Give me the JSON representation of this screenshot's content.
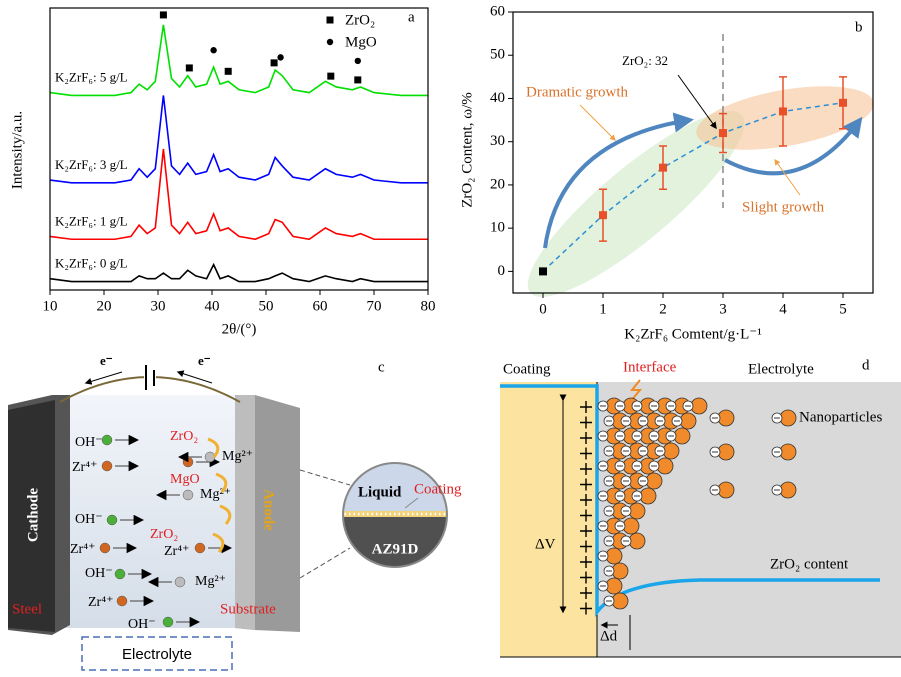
{
  "chart_data": [
    {
      "type": "line",
      "panel_label": "a",
      "xlabel": "2θ/(°)",
      "ylabel": "Intensity/a.u.",
      "x": [
        10,
        14,
        18,
        22,
        25,
        26.5,
        28,
        29.5,
        31,
        32.5,
        34,
        35.5,
        37,
        39,
        40.3,
        41.5,
        43,
        45,
        48,
        50.5,
        51.7,
        53,
        55,
        58,
        61,
        63,
        66,
        67.5,
        70,
        75,
        80
      ],
      "xlim": [
        10,
        80
      ],
      "xticks": [
        10,
        20,
        30,
        40,
        50,
        60,
        70,
        80
      ],
      "ylim": [
        0,
        100
      ],
      "series": [
        {
          "name": "K₂ZrF₆: 5 g/L",
          "color": "#00e000",
          "values": [
            70,
            69,
            69,
            69,
            70,
            73,
            71,
            74,
            94,
            75,
            72,
            76,
            72,
            73,
            79,
            73,
            74,
            71,
            70,
            72,
            78,
            76,
            71,
            70,
            74,
            72,
            71,
            72,
            70,
            69,
            69
          ]
        },
        {
          "name": "K₂ZrF₆: 3 g/L",
          "color": "#0000ff",
          "values": [
            39,
            38,
            38,
            38,
            39,
            43,
            40,
            43,
            69,
            44,
            41,
            45,
            41,
            42,
            48,
            42,
            43,
            40,
            39,
            41,
            47,
            44,
            40,
            39,
            43,
            41,
            40,
            41,
            39,
            38,
            38
          ]
        },
        {
          "name": "K₂ZrF₆: 1 g/L",
          "color": "#ff0000",
          "values": [
            19,
            18,
            18,
            18,
            19,
            23,
            20,
            22,
            50,
            23,
            20,
            24,
            20,
            21,
            27,
            21,
            22,
            19,
            18,
            20,
            25,
            24,
            19,
            18,
            22,
            20,
            19,
            20,
            18,
            18,
            18
          ]
        },
        {
          "name": "K₂ZrF₆: 0 g/L",
          "color": "#000000",
          "values": [
            4,
            3,
            3,
            3,
            3,
            5,
            4,
            4,
            6,
            4,
            4,
            7,
            5,
            4,
            9,
            4,
            5,
            3,
            3,
            4,
            5,
            6,
            4,
            3,
            5,
            4,
            3,
            4,
            3,
            3,
            3
          ]
        }
      ],
      "markers": [
        {
          "name": "ZrO₂",
          "shape": "square",
          "x": [
            31,
            35.8,
            43,
            51.5,
            62,
            67
          ]
        },
        {
          "name": "MgO",
          "shape": "circle",
          "x": [
            40.3,
            52.7,
            67
          ]
        }
      ]
    },
    {
      "type": "scatter",
      "panel_label": "b",
      "xlabel": "K₂ZrF₆ Comtent/g·L⁻¹",
      "ylabel": "ZrO₂ Content, ω/%",
      "x": [
        0,
        1,
        2,
        3,
        4,
        5
      ],
      "values": [
        0,
        13,
        24,
        32,
        37,
        39
      ],
      "errors": [
        0,
        6,
        5,
        4.5,
        8,
        6
      ],
      "colors": [
        "#000000",
        "#e8502a",
        "#e8502a",
        "#e8502a",
        "#e8502a",
        "#e8502a"
      ],
      "fit_color": "#2a8fd6",
      "xlim": [
        -0.5,
        5.5
      ],
      "xticks": [
        0,
        1,
        2,
        3,
        4,
        5
      ],
      "ylim": [
        -5,
        60
      ],
      "yticks": [
        0,
        10,
        20,
        30,
        40,
        50,
        60
      ],
      "annotations": [
        {
          "text": "ZrO₂: 32",
          "x": 3
        },
        {
          "text": "Dramatic growth"
        },
        {
          "text": "Slight growth"
        }
      ]
    }
  ],
  "diagram_c": {
    "panel_label": "c",
    "electrons": [
      "e⁻",
      "e⁻"
    ],
    "species": [
      "ZrO₂",
      "OH⁻",
      "Mg²⁺",
      "Zr⁴⁺",
      "MgO",
      "Mg²⁺",
      "OH⁻",
      "Zr⁴⁺",
      "Zr⁴⁺",
      "ZrO₂",
      "OH⁻",
      "Mg²⁺",
      "Zr⁴⁺",
      "OH⁻"
    ],
    "cathode": "Cathode",
    "anode": "Anode",
    "cathode_material": "Steel",
    "anode_material": "Substrate",
    "electrolyte": "Electrolyte",
    "inset": {
      "liquid": "Liquid",
      "coating": "Coating",
      "substrate": "AZ91D"
    }
  },
  "diagram_d": {
    "panel_label": "d",
    "coating": "Coating",
    "interface": "Interface",
    "electrolyte": "Electrolyte",
    "nanoparticles": "Nanoparticles",
    "potential": "ΔV",
    "content": "ZrO₂ content",
    "thickness": "Δd"
  }
}
